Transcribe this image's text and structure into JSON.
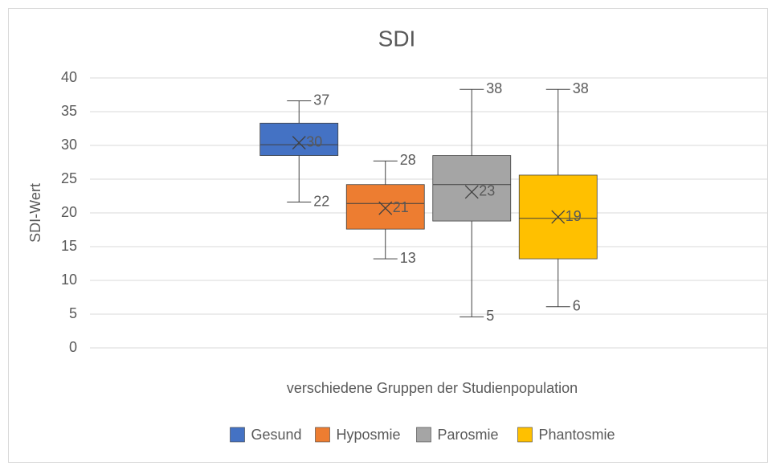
{
  "chart_data": {
    "type": "box",
    "title": "SDI",
    "y_label": "SDI-Wert",
    "x_label": "verschiedene  Gruppen der Studienpopulation",
    "ylim": [
      0,
      40
    ],
    "yticks": [
      0,
      5,
      10,
      15,
      20,
      25,
      30,
      35,
      40
    ],
    "grid": true,
    "legend": "bottom",
    "series": [
      {
        "name": "Gesund",
        "color": "#4472c4",
        "min": 21.6,
        "q1": 28.5,
        "median": 30.1,
        "q3": 33.3,
        "max": 36.6,
        "mean": 30.4,
        "value_labels": {
          "max": "37",
          "min": "22",
          "mean": "30"
        }
      },
      {
        "name": "Hyposmie",
        "color": "#ed7d31",
        "min": 13.2,
        "q1": 17.6,
        "median": 21.4,
        "q3": 24.2,
        "max": 27.7,
        "mean": 20.7,
        "value_labels": {
          "max": "28",
          "min": "13",
          "mean": "21"
        }
      },
      {
        "name": "Parosmie",
        "color": "#a5a5a5",
        "min": 4.6,
        "q1": 18.8,
        "median": 24.2,
        "q3": 28.5,
        "max": 38.3,
        "mean": 23.1,
        "value_labels": {
          "max": "38",
          "min": "5",
          "mean": "23"
        }
      },
      {
        "name": "Phantosmie",
        "color": "#ffc000",
        "min": 6.1,
        "q1": 13.2,
        "median": 19.2,
        "q3": 25.6,
        "max": 38.3,
        "mean": 19.4,
        "value_labels": {
          "max": "38",
          "min": "6",
          "mean": "19"
        }
      }
    ]
  }
}
